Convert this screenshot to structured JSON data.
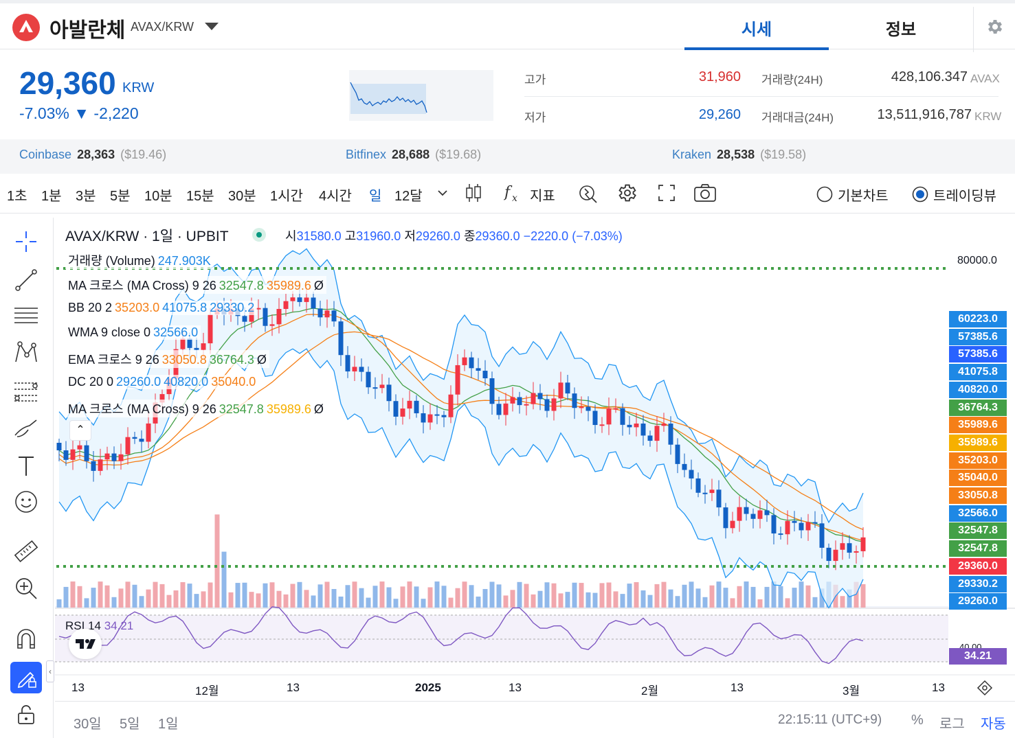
{
  "header": {
    "coin_name": "아발란체",
    "pair": "AVAX/KRW",
    "tab_price": "시세",
    "tab_info": "정보"
  },
  "ticker": {
    "price": "29,360",
    "unit": "KRW",
    "change": "-7.03% ▼ -2,220",
    "high_label": "고가",
    "high_value": "31,960",
    "low_label": "저가",
    "low_value": "29,260",
    "volume_label": "거래량(24H)",
    "volume_value": "428,106.347",
    "volume_unit": "AVAX",
    "amount_label": "거래대금(24H)",
    "amount_value": "13,511,916,787",
    "amount_unit": "KRW"
  },
  "exchanges": [
    {
      "name": "Coinbase",
      "price": "28,363",
      "usd": "($19.46)"
    },
    {
      "name": "Bitfinex",
      "price": "28,688",
      "usd": "($19.68)"
    },
    {
      "name": "Kraken",
      "price": "28,538",
      "usd": "($19.58)"
    }
  ],
  "toolbar": {
    "timeframes": [
      "1초",
      "1분",
      "3분",
      "5분",
      "10분",
      "15분",
      "30분",
      "1시간",
      "4시간",
      "일",
      "12달"
    ],
    "active_timeframe": "일",
    "indicators_label": "지표",
    "basic_chart_label": "기본차트",
    "tradingview_label": "트레이딩뷰",
    "selected_view": "트레이딩뷰"
  },
  "chart": {
    "title": "AVAX/KRW · 1일 · UPBIT",
    "ohlc": {
      "o_label": "시",
      "o": "31580.0",
      "h_label": "고",
      "h": "31960.0",
      "l_label": "저",
      "l": "29260.0",
      "c_label": "종",
      "c": "29360.0",
      "chg": "−2220.0 (−7.03%)"
    },
    "legends": [
      {
        "name": "거래량 (Volume)",
        "values": [
          "247.903K"
        ]
      },
      {
        "name": "MA 크로스 (MA Cross) 9 26",
        "values": [
          "32547.8",
          "35989.6",
          "Ø"
        ]
      },
      {
        "name": "BB 20 2",
        "values": [
          "35203.0",
          "41075.8",
          "29330.2"
        ]
      },
      {
        "name": "WMA 9 close 0",
        "values": [
          "32566.0"
        ]
      },
      {
        "name": "EMA 크로스 9 26",
        "values": [
          "33050.8",
          "36764.3",
          "Ø"
        ]
      },
      {
        "name": "DC 20 0",
        "values": [
          "29260.0",
          "40820.0",
          "35040.0"
        ]
      },
      {
        "name": "MA 크로스 (MA Cross) 9 26",
        "values": [
          "32547.8",
          "35989.6",
          "Ø"
        ]
      }
    ],
    "axis_top": "80000.0",
    "price_tags": [
      {
        "value": "60223.0",
        "color": "#1e88e5"
      },
      {
        "value": "57385.6",
        "color": "#1e88e5"
      },
      {
        "value": "57385.6",
        "color": "#2962ff"
      },
      {
        "value": "41075.8",
        "color": "#1e88e5"
      },
      {
        "value": "40820.0",
        "color": "#1e88e5"
      },
      {
        "value": "36764.3",
        "color": "#43a047"
      },
      {
        "value": "35989.6",
        "color": "#f57f17"
      },
      {
        "value": "35989.6",
        "color": "#f6b000"
      },
      {
        "value": "35203.0",
        "color": "#f57f17"
      },
      {
        "value": "35040.0",
        "color": "#f57f17"
      },
      {
        "value": "33050.8",
        "color": "#f57f17"
      },
      {
        "value": "32566.0",
        "color": "#1e88e5"
      },
      {
        "value": "32547.8",
        "color": "#43a047"
      },
      {
        "value": "32547.8",
        "color": "#43a047"
      },
      {
        "value": "29360.0",
        "color": "#f23645"
      },
      {
        "value": "29330.2",
        "color": "#1e88e5"
      },
      {
        "value": "29260.0",
        "color": "#1e88e5"
      }
    ],
    "rsi": {
      "label": "RSI 14",
      "value": "34.21",
      "top_tick": "40.00"
    },
    "x_labels": [
      "13",
      "12월",
      "13",
      "2025",
      "13",
      "2월",
      "13",
      "3월",
      "13"
    ],
    "colors": {
      "up": "#f23645",
      "down": "#1261c4",
      "bb": "#2196f3",
      "ma_fast": "#43a047",
      "ma_slow": "#f57f17",
      "rsi": "#7e57c2"
    }
  },
  "bottom": {
    "ranges": [
      "30일",
      "5일",
      "1일"
    ],
    "clock": "22:15:11 (UTC+9)",
    "percent": "%",
    "log": "로그",
    "auto": "자동"
  }
}
